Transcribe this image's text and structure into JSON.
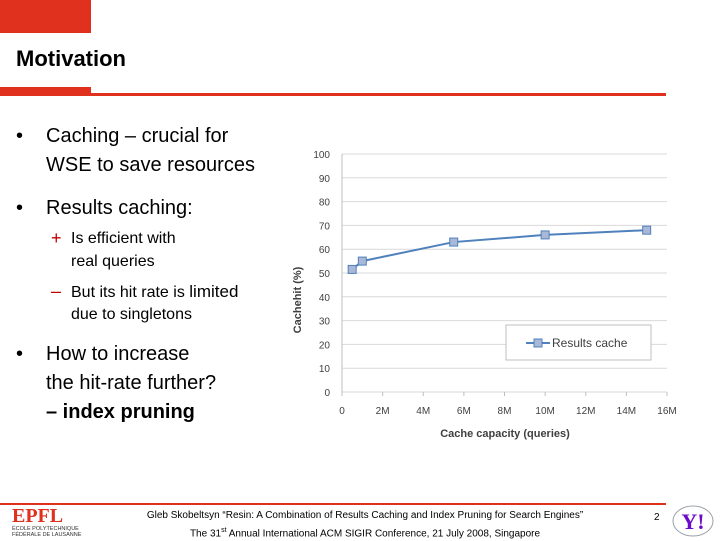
{
  "slide": {
    "title": "Motivation",
    "page_number": "2"
  },
  "bullets": {
    "b1_line1": "Caching – crucial for",
    "b1_line2": "WSE to save resources",
    "b2": "Results caching:",
    "sub1_line1": "Is efficient with",
    "sub1_line2": "real queries",
    "sub2_line1a": "But its hit rate is",
    "sub2_line1b": "limited",
    "sub2_line2": "due to singletons",
    "b3_line1": "How to increase",
    "b3_line2": "the hit-rate further?",
    "b3_line3": "– index pruning"
  },
  "footer": {
    "line1": "Gleb Skobeltsyn “Resin: A Combination of Results Caching and Index Pruning for Search Engines”",
    "line2_pre": "The 31",
    "line2_sup": "st",
    "line2_post": " Annual International ACM SIGIR Conference, 21 July 2008, Singapore",
    "logo_left_text1": "ÉCOLE POLYTECHNIQUE",
    "logo_left_text2": "FÉDÉRALE DE LAUSANNE",
    "logo_left_mark": "EPFL",
    "logo_right_mark": "Y!"
  },
  "colors": {
    "accent": "#e0301e",
    "series": "#4f81bd",
    "marker_fill": "#a9b8d6"
  },
  "chart_data": {
    "type": "line",
    "title": "",
    "xlabel": "Cache capacity (queries)",
    "ylabel": "Cachehit (%)",
    "xlim": [
      0,
      16
    ],
    "ylim": [
      0,
      100
    ],
    "x_ticks": [
      "0",
      "2M",
      "4M",
      "6M",
      "8M",
      "10M",
      "12M",
      "14M",
      "16M"
    ],
    "y_ticks": [
      "0",
      "10",
      "20",
      "30",
      "40",
      "50",
      "60",
      "70",
      "80",
      "90",
      "100"
    ],
    "grid": true,
    "legend_position": "lower-right",
    "series": [
      {
        "name": "Results cache",
        "x": [
          0.5,
          1.0,
          5.5,
          10.0,
          15.0
        ],
        "y": [
          51.5,
          55,
          63,
          66,
          68
        ]
      }
    ]
  }
}
